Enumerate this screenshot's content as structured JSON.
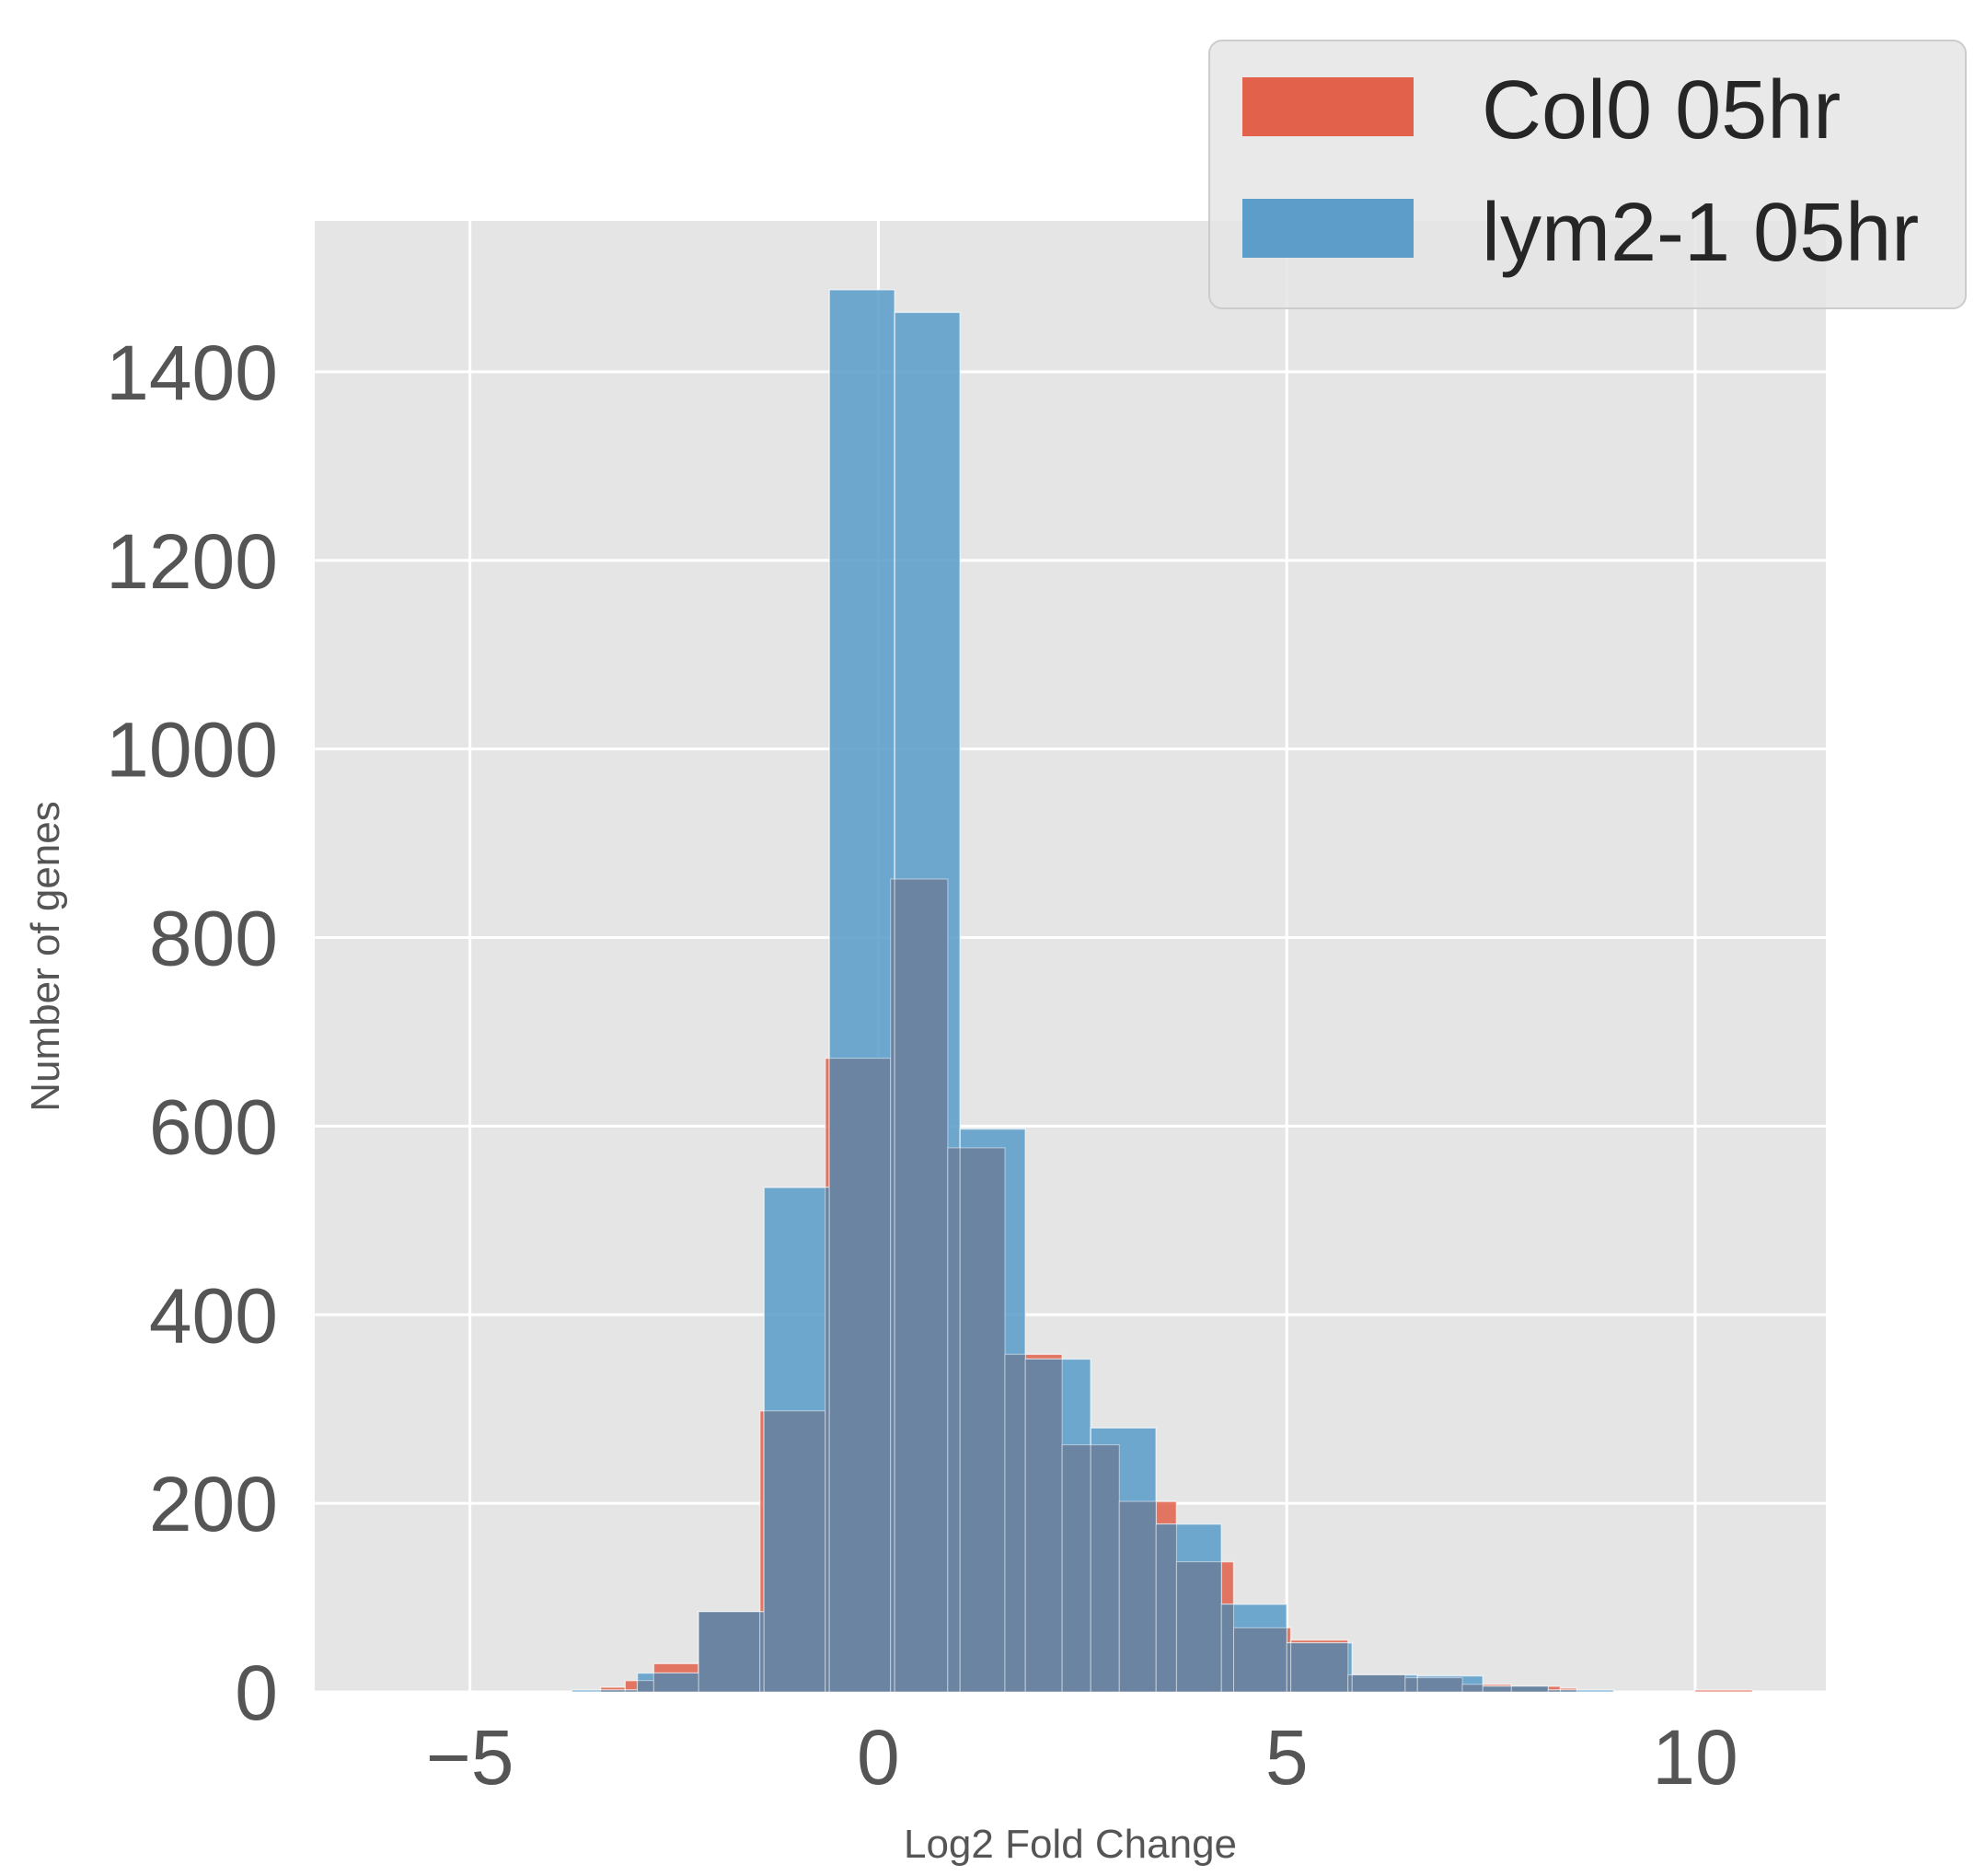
{
  "chart_data": {
    "type": "bar",
    "subtype": "overlaid histogram",
    "title": "",
    "xlabel": "Log2 Fold Change",
    "ylabel": "Number of genes",
    "xlim": [
      -6.9,
      11.6
    ],
    "ylim": [
      0,
      1560
    ],
    "xticks": [
      -5,
      0,
      5,
      10
    ],
    "xtick_labels": [
      "−5",
      "0",
      "5",
      "10"
    ],
    "yticks": [
      0,
      200,
      400,
      600,
      800,
      1000,
      1200,
      1400
    ],
    "ytick_labels": [
      "0",
      "200",
      "400",
      "600",
      "800",
      "1000",
      "1200",
      "1400"
    ],
    "grid": true,
    "legend_position": "top-right",
    "background": "#e5e5e5",
    "overlap_color": "#6a84a1",
    "series": [
      {
        "name": "Col0 05hr",
        "color": "#e2614b",
        "bins": [
          {
            "x0": -3.4,
            "x1": -3.1,
            "count": 5
          },
          {
            "x0": -3.1,
            "x1": -2.75,
            "count": 12
          },
          {
            "x0": -2.75,
            "x1": -2.2,
            "count": 30
          },
          {
            "x0": -2.2,
            "x1": -1.45,
            "count": 85
          },
          {
            "x0": -1.45,
            "x1": -0.65,
            "count": 298
          },
          {
            "x0": -0.65,
            "x1": 0.15,
            "count": 672
          },
          {
            "x0": 0.15,
            "x1": 0.85,
            "count": 862
          },
          {
            "x0": 0.85,
            "x1": 1.55,
            "count": 577
          },
          {
            "x0": 1.55,
            "x1": 2.25,
            "count": 358
          },
          {
            "x0": 2.25,
            "x1": 2.95,
            "count": 262
          },
          {
            "x0": 2.95,
            "x1": 3.65,
            "count": 202
          },
          {
            "x0": 3.65,
            "x1": 4.35,
            "count": 138
          },
          {
            "x0": 4.35,
            "x1": 5.05,
            "count": 68
          },
          {
            "x0": 5.05,
            "x1": 5.75,
            "count": 55
          },
          {
            "x0": 5.75,
            "x1": 6.45,
            "count": 18
          },
          {
            "x0": 6.45,
            "x1": 7.15,
            "count": 15
          },
          {
            "x0": 7.15,
            "x1": 7.75,
            "count": 8
          },
          {
            "x0": 7.75,
            "x1": 8.35,
            "count": 6
          },
          {
            "x0": 8.35,
            "x1": 8.55,
            "count": 4
          },
          {
            "x0": 10.0,
            "x1": 10.7,
            "count": 2
          }
        ]
      },
      {
        "name": "lym2-1 05hr",
        "color": "#5c9ec9",
        "bins": [
          {
            "x0": -3.75,
            "x1": -2.95,
            "count": 2
          },
          {
            "x0": -2.95,
            "x1": -2.2,
            "count": 20
          },
          {
            "x0": -2.2,
            "x1": -1.4,
            "count": 85
          },
          {
            "x0": -1.4,
            "x1": -0.6,
            "count": 535
          },
          {
            "x0": -0.6,
            "x1": 0.2,
            "count": 1487
          },
          {
            "x0": 0.2,
            "x1": 1.0,
            "count": 1463
          },
          {
            "x0": 1.0,
            "x1": 1.8,
            "count": 597
          },
          {
            "x0": 1.8,
            "x1": 2.6,
            "count": 353
          },
          {
            "x0": 2.6,
            "x1": 3.4,
            "count": 280
          },
          {
            "x0": 3.4,
            "x1": 4.2,
            "count": 178
          },
          {
            "x0": 4.2,
            "x1": 5.0,
            "count": 93
          },
          {
            "x0": 5.0,
            "x1": 5.8,
            "count": 52
          },
          {
            "x0": 5.8,
            "x1": 6.6,
            "count": 18
          },
          {
            "x0": 6.6,
            "x1": 7.4,
            "count": 17
          },
          {
            "x0": 7.4,
            "x1": 8.2,
            "count": 6
          },
          {
            "x0": 8.2,
            "x1": 9.0,
            "count": 2
          }
        ]
      }
    ]
  }
}
